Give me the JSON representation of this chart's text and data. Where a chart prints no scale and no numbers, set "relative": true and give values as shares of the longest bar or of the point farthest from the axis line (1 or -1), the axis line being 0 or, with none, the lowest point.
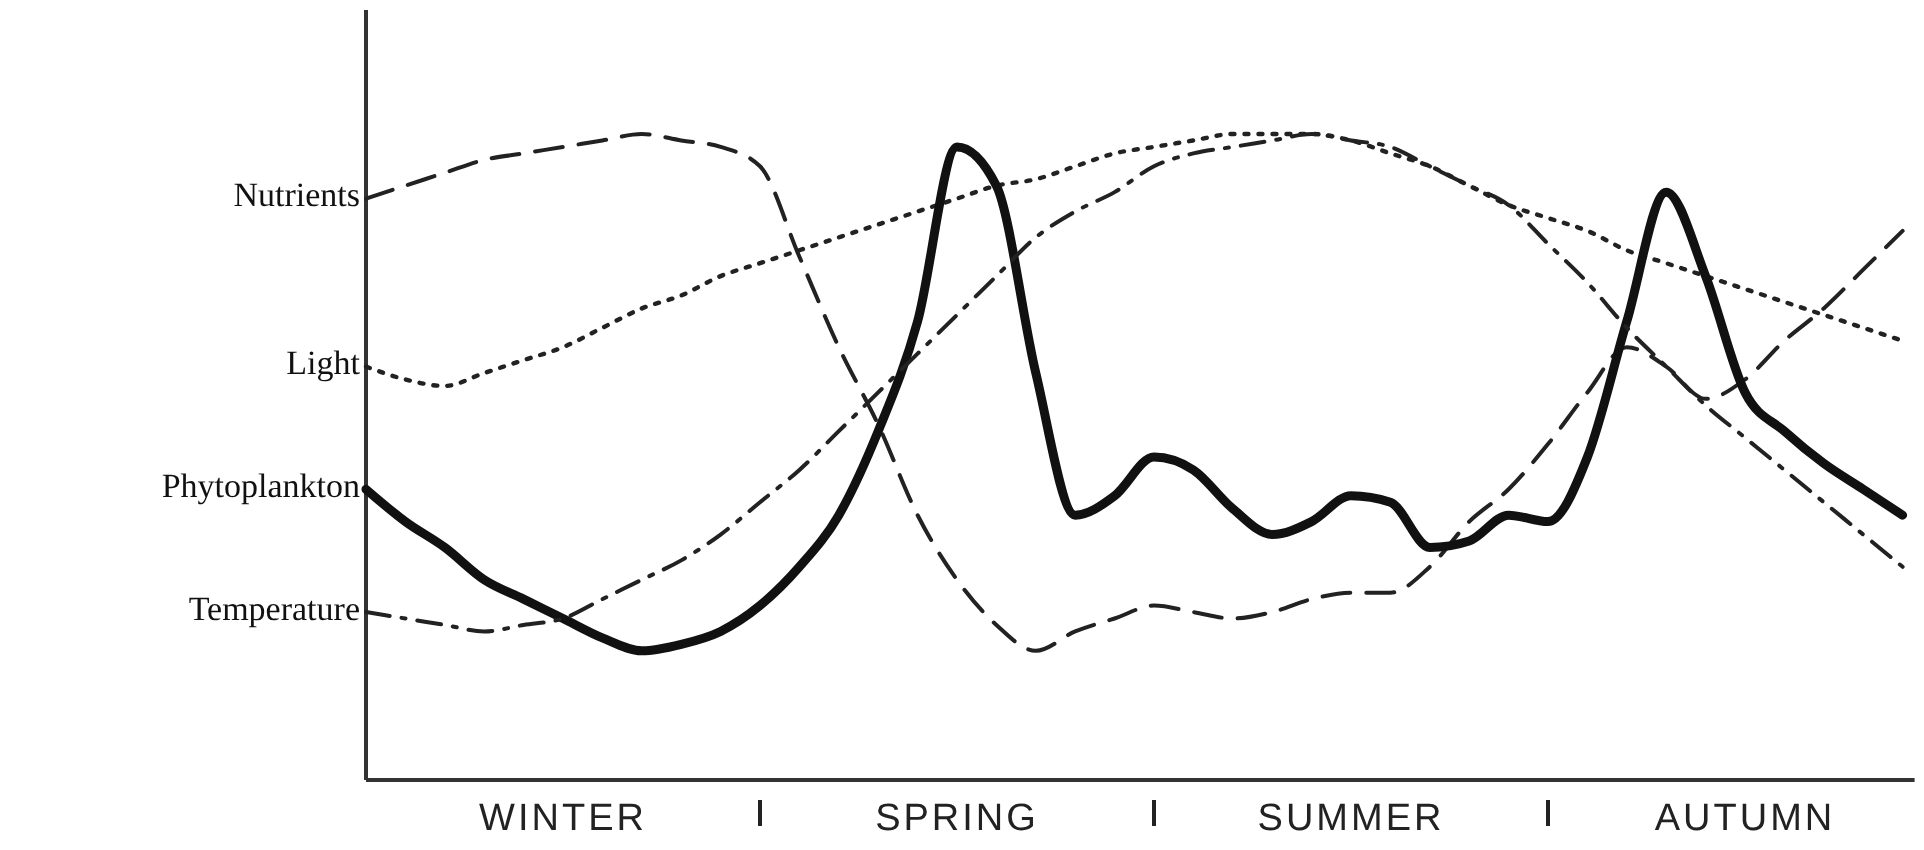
{
  "chart_data": {
    "type": "line",
    "relative": true,
    "legend": false,
    "grid": false,
    "categories": [
      null,
      null,
      null,
      null,
      null,
      "WINTER",
      null,
      null,
      null,
      null,
      null,
      null,
      null,
      null,
      null,
      "SPRING",
      null,
      null,
      null,
      null,
      null,
      null,
      null,
      null,
      null,
      "SUMMER",
      null,
      null,
      null,
      null,
      null,
      null,
      null,
      null,
      null,
      "AUTUMN",
      null,
      null,
      null,
      null
    ],
    "series": [
      {
        "name": "Nutrients",
        "color": "#222222",
        "line_style": "dashed",
        "values": [
          0.9,
          0.92,
          0.94,
          0.96,
          0.97,
          0.98,
          0.99,
          1,
          0.99,
          0.98,
          0.95,
          0.81,
          0.67,
          0.55,
          0.41,
          0.31,
          0.24,
          0.2,
          0.23,
          0.25,
          0.27,
          0.26,
          0.25,
          0.26,
          0.28,
          0.29,
          0.29,
          0.33,
          0.4,
          0.45,
          0.52,
          0.6,
          0.67,
          0.64,
          0.59,
          0.62,
          0.68,
          0.73,
          0.79,
          0.85
        ]
      },
      {
        "name": "Light",
        "color": "#222222",
        "line_style": "dotted",
        "values": [
          0.64,
          0.62,
          0.61,
          0.63,
          0.65,
          0.67,
          0.7,
          0.73,
          0.75,
          0.78,
          0.8,
          0.82,
          0.84,
          0.86,
          0.88,
          0.9,
          0.92,
          0.93,
          0.95,
          0.97,
          0.98,
          0.99,
          1,
          1,
          1,
          0.99,
          0.97,
          0.95,
          0.92,
          0.89,
          0.87,
          0.85,
          0.82,
          0.8,
          0.78,
          0.76,
          0.74,
          0.72,
          0.7,
          0.68
        ]
      },
      {
        "name": "Phytoplankton",
        "color": "#111111",
        "line_style": "solid",
        "values": [
          0.45,
          0.4,
          0.36,
          0.31,
          0.28,
          0.25,
          0.22,
          0.2,
          0.21,
          0.23,
          0.27,
          0.33,
          0.41,
          0.54,
          0.71,
          0.98,
          0.92,
          0.63,
          0.41,
          0.44,
          0.5,
          0.48,
          0.42,
          0.38,
          0.4,
          0.44,
          0.43,
          0.36,
          0.37,
          0.41,
          0.4,
          0.5,
          0.71,
          0.91,
          0.78,
          0.6,
          0.54,
          0.49,
          0.45,
          0.41
        ]
      },
      {
        "name": "Temperature",
        "color": "#222222",
        "line_style": "dashdot",
        "values": [
          0.26,
          0.25,
          0.24,
          0.23,
          0.24,
          0.25,
          0.28,
          0.31,
          0.34,
          0.38,
          0.43,
          0.48,
          0.54,
          0.6,
          0.66,
          0.72,
          0.78,
          0.84,
          0.88,
          0.91,
          0.95,
          0.97,
          0.98,
          0.99,
          1,
          0.99,
          0.98,
          0.95,
          0.92,
          0.89,
          0.83,
          0.77,
          0.7,
          0.64,
          0.58,
          0.53,
          0.48,
          0.43,
          0.38,
          0.33
        ]
      }
    ]
  }
}
